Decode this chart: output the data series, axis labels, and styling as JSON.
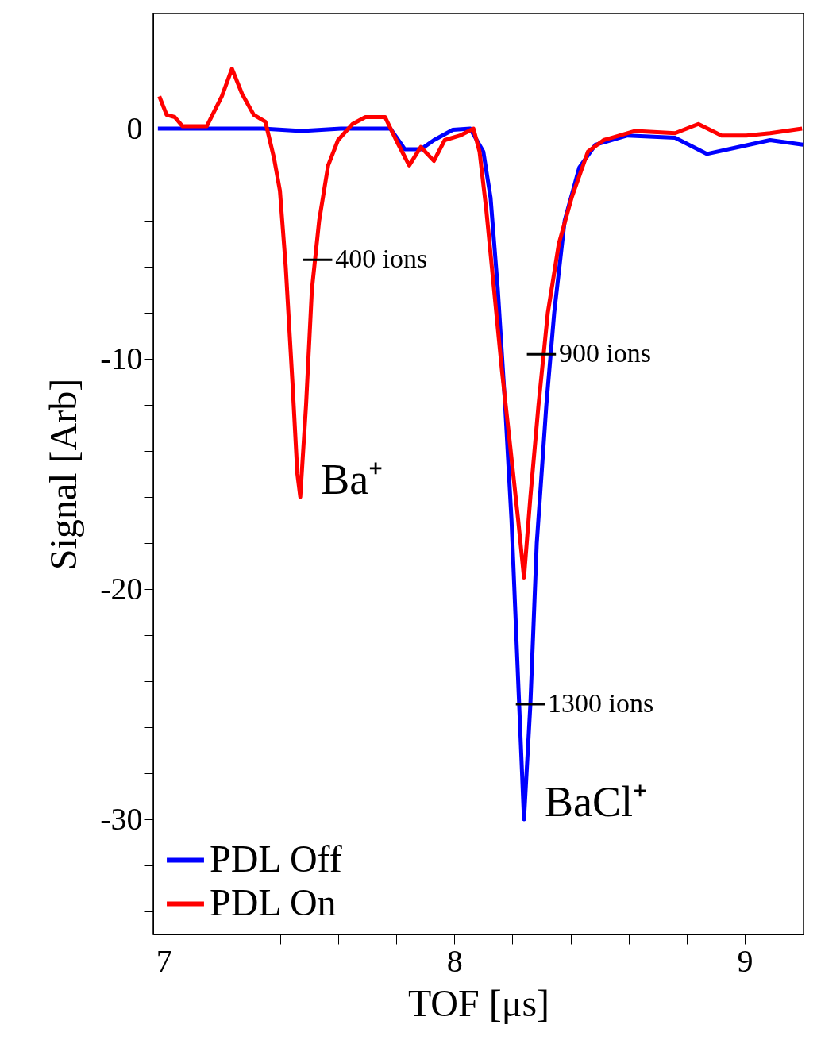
{
  "chart_data": {
    "type": "line",
    "xlabel": "TOF [μs]",
    "ylabel": "Signal [Arb]",
    "xlim": [
      6.964,
      9.202
    ],
    "ylim": [
      -35,
      5
    ],
    "xticks": [
      7,
      {
        "value": 7.2,
        "label": null
      },
      {
        "value": 7.4,
        "label": null
      },
      {
        "value": 7.6,
        "label": null
      },
      {
        "value": 7.8,
        "label": null
      },
      8,
      {
        "value": 8.2,
        "label": null
      },
      {
        "value": 8.4,
        "label": null
      },
      {
        "value": 8.6,
        "label": null
      },
      {
        "value": 8.8,
        "label": null
      },
      9
    ],
    "yticks": [
      {
        "value": -34,
        "label": null
      },
      {
        "value": -32,
        "label": null
      },
      -30,
      {
        "value": -28,
        "label": null
      },
      {
        "value": -26,
        "label": null
      },
      {
        "value": -24,
        "label": null
      },
      {
        "value": -22,
        "label": null
      },
      -20,
      {
        "value": -18,
        "label": null
      },
      {
        "value": -16,
        "label": null
      },
      {
        "value": -14,
        "label": null
      },
      {
        "value": -12,
        "label": null
      },
      -10,
      {
        "value": -8,
        "label": null
      },
      {
        "value": -6,
        "label": null
      },
      {
        "value": -4,
        "label": null
      },
      {
        "value": -2,
        "label": null
      },
      0,
      {
        "value": 2,
        "label": null
      },
      {
        "value": 4,
        "label": null
      }
    ],
    "grid": false,
    "legend": "bottom left",
    "line_style": "solid",
    "marker": "none",
    "series": [
      {
        "name": "PDL Off",
        "color": "#0000ff",
        "x": [
          6.98,
          7.34,
          7.475,
          7.61,
          7.78,
          7.83,
          7.885,
          7.93,
          7.995,
          8.055,
          8.1,
          8.125,
          8.15,
          8.175,
          8.197,
          8.22,
          8.24,
          8.262,
          8.284,
          8.317,
          8.344,
          8.38,
          8.43,
          8.486,
          8.596,
          8.76,
          8.87,
          8.978,
          9.087,
          9.2
        ],
        "values": [
          0,
          0,
          -0.1,
          0,
          0,
          -0.9,
          -0.9,
          -0.5,
          -0.05,
          0,
          -1,
          -3,
          -7,
          -12,
          -17,
          -24,
          -30,
          -25,
          -18,
          -12,
          -8,
          -4,
          -1.7,
          -0.7,
          -0.3,
          -0.4,
          -1.1,
          -0.8,
          -0.5,
          -0.7
        ]
      },
      {
        "name": "PDL On",
        "color": "#ff0000",
        "x": [
          6.985,
          7.01,
          7.038,
          7.065,
          7.148,
          7.2,
          7.235,
          7.27,
          7.31,
          7.35,
          7.38,
          7.4,
          7.42,
          7.443,
          7.46,
          7.47,
          7.49,
          7.51,
          7.535,
          7.566,
          7.6,
          7.65,
          7.694,
          7.762,
          7.8,
          7.845,
          7.885,
          7.93,
          7.967,
          8.02,
          8.066,
          8.087,
          8.11,
          8.137,
          8.164,
          8.19,
          8.22,
          8.24,
          8.262,
          8.29,
          8.322,
          8.36,
          8.404,
          8.46,
          8.514,
          8.623,
          8.76,
          8.84,
          8.92,
          9.005,
          9.087,
          9.197
        ],
        "values": [
          1.4,
          0.6,
          0.5,
          0.1,
          0.1,
          1.4,
          2.6,
          1.5,
          0.6,
          0.3,
          -1.3,
          -2.7,
          -6,
          -11,
          -15,
          -16,
          -12,
          -7,
          -4,
          -1.6,
          -0.5,
          0.2,
          0.5,
          0.5,
          -0.5,
          -1.6,
          -0.8,
          -1.4,
          -0.5,
          -0.3,
          0,
          -1,
          -3.5,
          -7,
          -10.5,
          -13.5,
          -17,
          -19.5,
          -16,
          -12,
          -8,
          -5,
          -3,
          -1,
          -0.5,
          -0.1,
          -0.2,
          0.2,
          -0.3,
          -0.3,
          -0.2,
          0
        ]
      }
    ],
    "annotations": [
      {
        "text": "400 ions",
        "x": 7.53,
        "y": -5.7
      },
      {
        "text": "900 ions",
        "x": 8.3,
        "y": -9.8
      },
      {
        "text": "1300 ions",
        "x": 8.262,
        "y": -25
      },
      {
        "text": "Ba⁺",
        "x": 7.47,
        "y": -16
      },
      {
        "text": "BaCl⁺",
        "x": 8.24,
        "y": -30
      }
    ]
  }
}
